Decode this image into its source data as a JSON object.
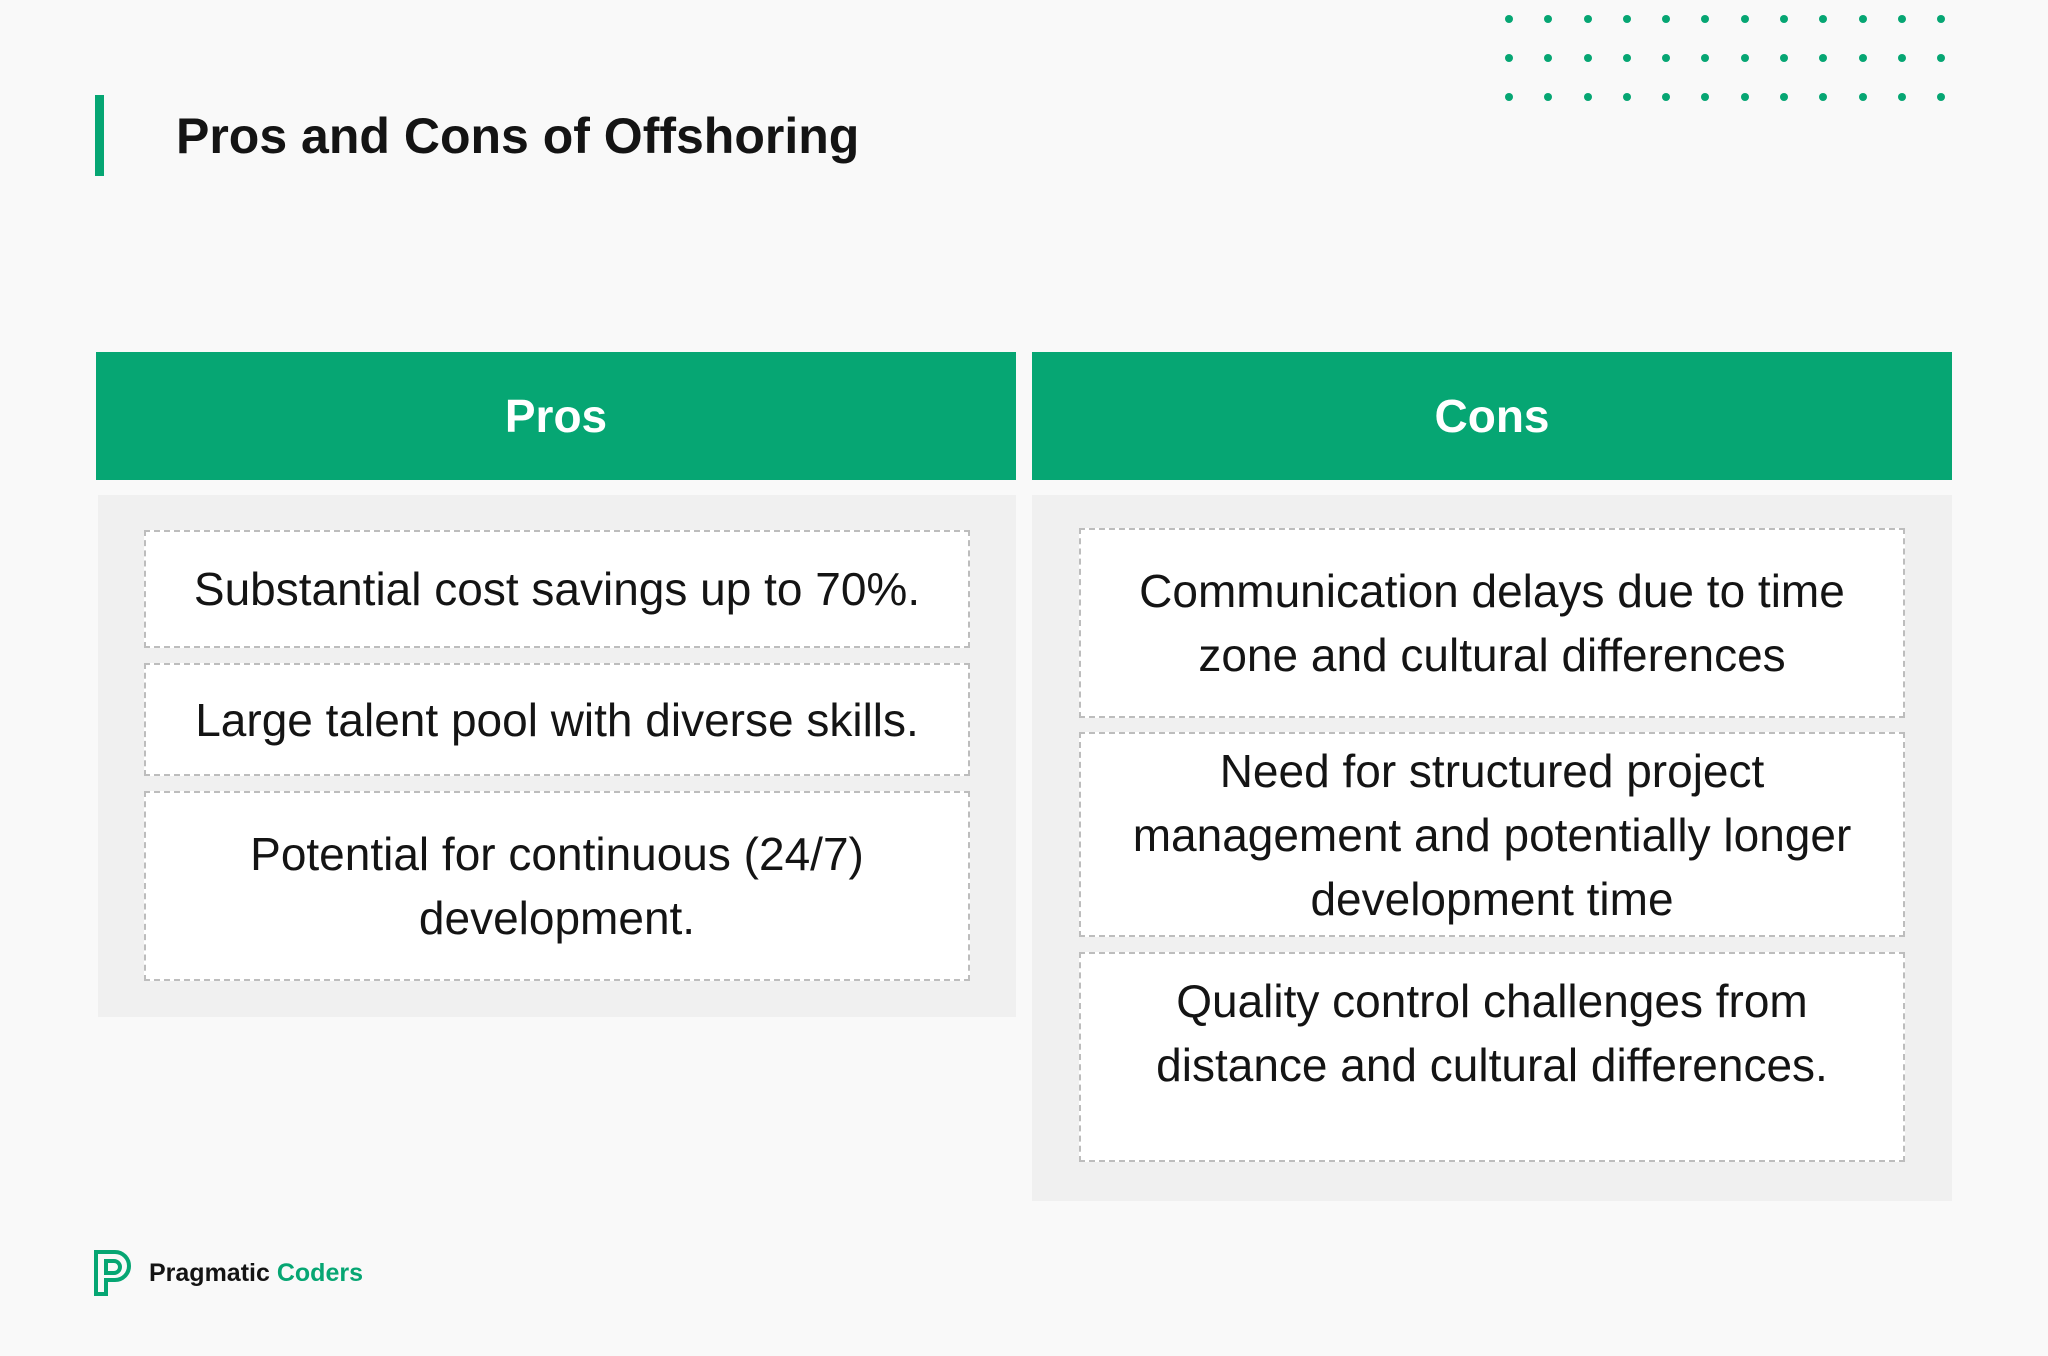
{
  "title": "Pros and Cons of Offshoring",
  "accent_color": "#06a673",
  "pros": {
    "header": "Pros",
    "items": [
      "Substantial cost savings up to 70%.",
      "Large talent pool with diverse skills.",
      "Potential for continuous (24/7) development."
    ]
  },
  "cons": {
    "header": "Cons",
    "items": [
      "Communication delays due to time zone and cultural differences",
      "Need for structured project management and potentially longer development time",
      "Quality control challenges from distance and cultural differences."
    ]
  },
  "brand": {
    "name_part1": "Pragmatic",
    "name_part2": "Coders",
    "icon": "pragmatic-coders-logo-icon"
  }
}
